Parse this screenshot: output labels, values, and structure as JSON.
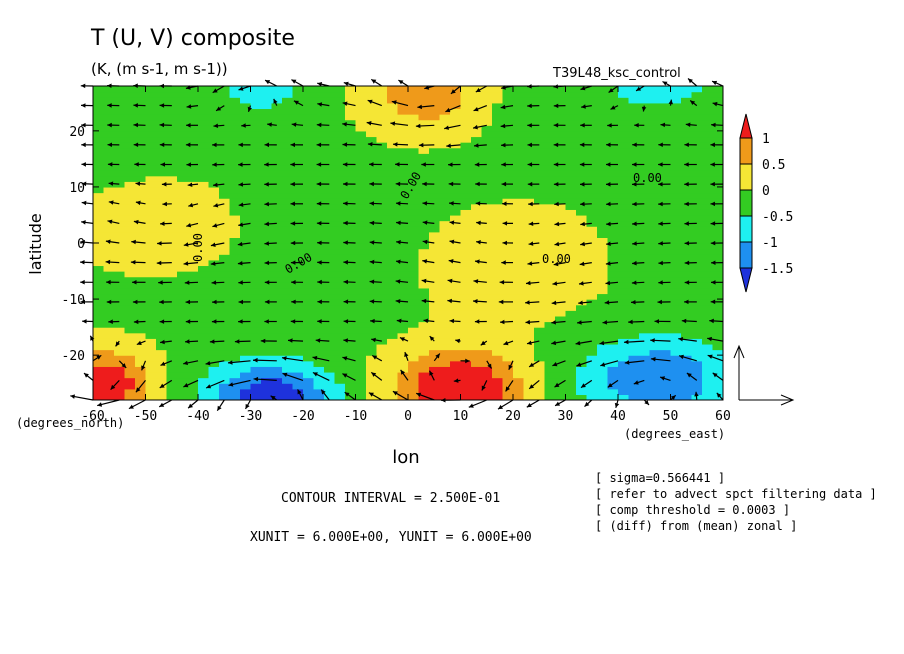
{
  "header": {
    "title": "T (U, V) composite",
    "units": "(K, (m s-1, m s-1))",
    "experiment": "T39L48_ksc_control"
  },
  "axes": {
    "xlabel": "lon",
    "ylabel": "latitude",
    "x_unit_label": "(degrees_east)",
    "y_unit_label": "(degrees_north)"
  },
  "contour_labels": [
    "0.00",
    "0.00",
    "0.00",
    "0.00",
    "0.00"
  ],
  "footer": {
    "contour_interval": "CONTOUR INTERVAL = 2.500E-01",
    "vector_units": "XUNIT = 6.000E+00, YUNIT = 6.000E+00"
  },
  "notes": [
    "[ sigma=0.566441 ]",
    "[ refer to advect spct filtering data ]",
    "[ comp threshold = 0.0003 ]",
    "[ (diff) from (mean) zonal ]"
  ],
  "chart_data": {
    "type": "heatmap",
    "title": "T (U, V) composite",
    "subtitle": "(K, (m s-1, m s-1))",
    "xlabel": "lon",
    "ylabel": "latitude",
    "xlim": [
      -60,
      60
    ],
    "ylim": [
      -28,
      28
    ],
    "x_ticks": [
      "-60",
      "-50",
      "-40",
      "-30",
      "-20",
      "-10",
      "0",
      "10",
      "20",
      "30",
      "40",
      "50",
      "60"
    ],
    "y_ticks": [
      "20",
      "10",
      "0",
      "-10",
      "-20"
    ],
    "y_tick_values": [
      20,
      10,
      0,
      -10,
      -20
    ],
    "contour_interval": 0.25,
    "colorbar": {
      "labels": [
        "1",
        "0.5",
        "0",
        "-0.5",
        "-1",
        "-1.5"
      ],
      "label_values": [
        1,
        0.5,
        0,
        -0.5,
        -1,
        -1.5
      ],
      "bins": [
        {
          "range": [
            1.0,
            1.5
          ],
          "color": "#ee1c1c"
        },
        {
          "range": [
            0.5,
            1.0
          ],
          "color": "#ef9a1a"
        },
        {
          "range": [
            0.0,
            0.5
          ],
          "color": "#f5e635"
        },
        {
          "range": [
            -0.5,
            0.0
          ],
          "color": "#33cc22"
        },
        {
          "range": [
            -1.0,
            -0.5
          ],
          "color": "#1ef0f0"
        },
        {
          "range": [
            -1.5,
            -1.0
          ],
          "color": "#1e90f0"
        },
        {
          "range": [
            -2.0,
            -1.5
          ],
          "color": "#1e32dc"
        }
      ]
    },
    "field_centers": [
      {
        "lon": -58,
        "lat": -25,
        "amp": 1.6,
        "slon": 9,
        "slat": 6
      },
      {
        "lon": -26,
        "lat": -27,
        "amp": -1.8,
        "slon": 12,
        "slat": 6
      },
      {
        "lon": 10,
        "lat": -26,
        "amp": 1.8,
        "slon": 12,
        "slat": 7
      },
      {
        "lon": 48,
        "lat": -24,
        "amp": -1.4,
        "slon": 14,
        "slat": 7
      },
      {
        "lon": 4,
        "lat": 27,
        "amp": 1.0,
        "slon": 10,
        "slat": 7
      },
      {
        "lon": -28,
        "lat": 28,
        "amp": -0.8,
        "slon": 8,
        "slat": 5
      },
      {
        "lon": 48,
        "lat": 29,
        "amp": -0.9,
        "slon": 10,
        "slat": 5
      },
      {
        "lon": -45,
        "lat": 3,
        "amp": 0.45,
        "slon": 12,
        "slat": 7
      },
      {
        "lon": 20,
        "lat": -5,
        "amp": 0.35,
        "slon": 15,
        "slat": 9
      }
    ],
    "reference_vector": {
      "u": 6,
      "v": 6
    }
  }
}
